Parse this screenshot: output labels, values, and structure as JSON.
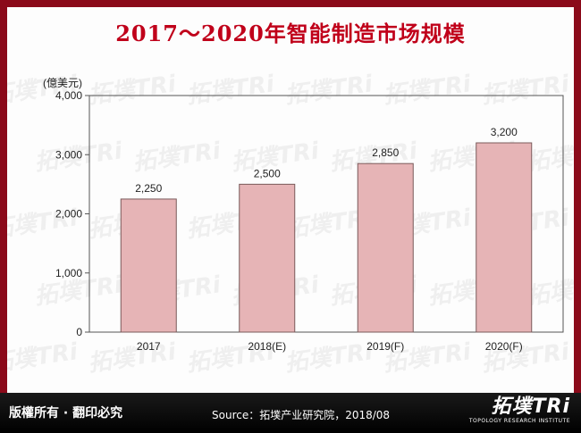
{
  "title": "2017～2020年智能制造市场规模",
  "watermark_text": "拓墣TRi",
  "footer": {
    "copyright": "版權所有 · 翻印必究",
    "source": "Source：拓墣产业研究院，2018/08",
    "logo_main": "拓墣TRi",
    "logo_sub": "TOPOLOGY RESEARCH INSTITUTE"
  },
  "colors": {
    "frame": "#8b0a1a",
    "title": "#c0001a",
    "bar_fill": "#e6b4b6",
    "bar_stroke": "#7a5a5a"
  },
  "chart_data": {
    "type": "bar",
    "categories": [
      "2017",
      "2018(E)",
      "2019(F)",
      "2020(F)"
    ],
    "values": [
      2250,
      2500,
      2850,
      3200
    ],
    "value_labels": [
      "2,250",
      "2,500",
      "2,850",
      "3,200"
    ],
    "unit_label": "(億美元)",
    "ylim": [
      0,
      4000
    ],
    "yticks": [
      0,
      1000,
      2000,
      3000,
      4000
    ],
    "ytick_labels": [
      "0",
      "1,000",
      "2,000",
      "3,000",
      "4,000"
    ],
    "grid": false,
    "legend": "none"
  }
}
